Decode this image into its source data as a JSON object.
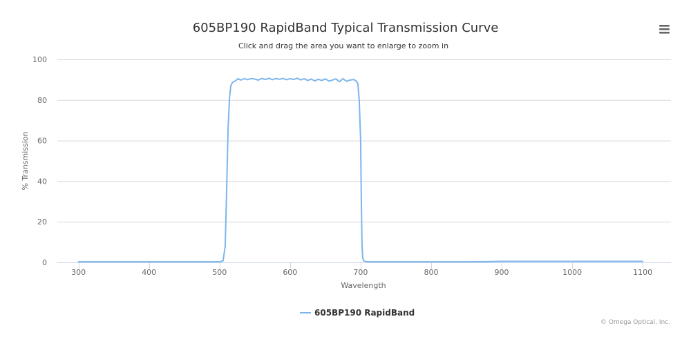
{
  "chart_data": {
    "type": "line",
    "title": "605BP190 RapidBand Typical Transmission Curve",
    "subtitle": "Click and drag the area you want to enlarge to zoom in",
    "xlabel": "Wavelength",
    "ylabel": "% Transmission",
    "xlim": [
      270,
      1140
    ],
    "ylim": [
      0,
      100
    ],
    "x_ticks": [
      "300",
      "400",
      "500",
      "600",
      "700",
      "800",
      "900",
      "1000",
      "1100"
    ],
    "y_ticks": [
      "0",
      "20",
      "40",
      "60",
      "80",
      "100"
    ],
    "grid": true,
    "legend_position": "bottom-center",
    "series": [
      {
        "name": "605BP190 RapidBand",
        "color": "#7cb5ec",
        "x": [
          300,
          400,
          500,
          505,
          508,
          510,
          512,
          514,
          516,
          518,
          520,
          523,
          526,
          530,
          535,
          540,
          545,
          550,
          555,
          560,
          565,
          570,
          575,
          580,
          585,
          590,
          595,
          600,
          605,
          610,
          615,
          620,
          625,
          630,
          635,
          640,
          645,
          650,
          655,
          660,
          665,
          670,
          675,
          680,
          685,
          690,
          693,
          696,
          698,
          700,
          701,
          702,
          703,
          705,
          708,
          712,
          720,
          760,
          800,
          850,
          880,
          900,
          950,
          1000,
          1050,
          1100
        ],
        "y": [
          0.3,
          0.3,
          0.3,
          0.8,
          8,
          35,
          65,
          81,
          87,
          88.5,
          89,
          89.5,
          90.5,
          89.8,
          90.5,
          90,
          90.6,
          90.3,
          89.8,
          90.6,
          90.1,
          90.7,
          90.0,
          90.6,
          90.2,
          90.6,
          90.0,
          90.5,
          90.1,
          90.7,
          89.9,
          90.5,
          89.6,
          90.3,
          89.4,
          90.2,
          89.6,
          90.4,
          89.3,
          89.8,
          90.4,
          89.0,
          90.5,
          89.2,
          89.8,
          90.1,
          89.5,
          88.2,
          80,
          60,
          30,
          8,
          2,
          0.6,
          0.4,
          0.3,
          0.3,
          0.3,
          0.3,
          0.3,
          0.4,
          0.5,
          0.5,
          0.5,
          0.5,
          0.5
        ]
      }
    ]
  },
  "menu": {
    "icon": "hamburger-menu-icon"
  },
  "credits": "© Omega Optical, Inc."
}
